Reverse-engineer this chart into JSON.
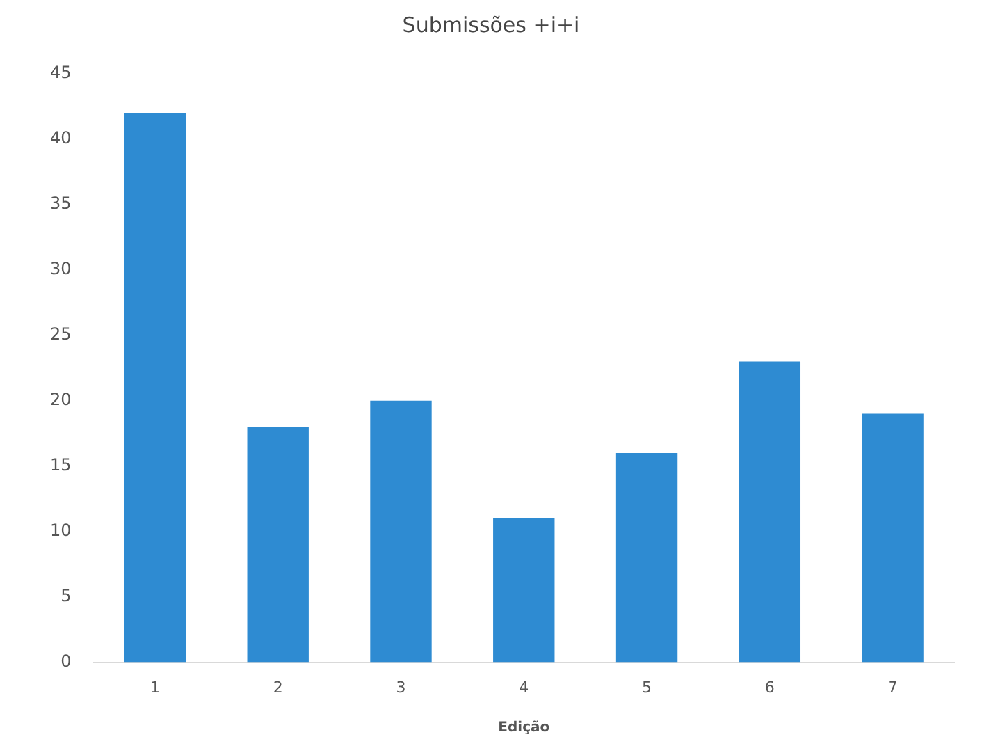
{
  "chart_data": {
    "type": "bar",
    "title": "Submissões +i+i",
    "xlabel": "Edição",
    "categories": [
      "1",
      "2",
      "3",
      "4",
      "5",
      "6",
      "7"
    ],
    "values": [
      42,
      18,
      20,
      11,
      16,
      23,
      19
    ],
    "color": "#2e8bd2",
    "ylim": [
      0,
      45
    ],
    "yticks": [
      0,
      5,
      10,
      15,
      20,
      25,
      30,
      35,
      40,
      45
    ],
    "grid": false,
    "legend": false
  }
}
